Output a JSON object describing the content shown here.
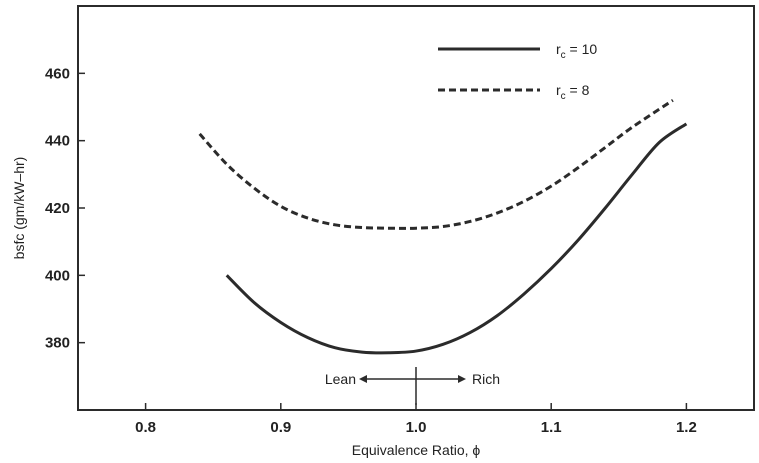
{
  "chart_data": {
    "type": "line",
    "title": "",
    "xlabel": "Equivalence Ratio, ϕ",
    "ylabel": "bsfc (gm/kW–hr)",
    "xlim": [
      0.75,
      1.25
    ],
    "ylim": [
      360,
      480
    ],
    "x_ticks": [
      0.8,
      0.9,
      1.0,
      1.1,
      1.2
    ],
    "x_tick_labels": [
      "0.8",
      "0.9",
      "1.0",
      "1.1",
      "1.2"
    ],
    "y_ticks": [
      380,
      400,
      420,
      440,
      460
    ],
    "y_tick_labels": [
      "380",
      "400",
      "420",
      "440",
      "460"
    ],
    "grid": false,
    "legend_position": "top-right",
    "series": [
      {
        "name_main": "r",
        "name_sub": "c",
        "name_suffix": " = 10",
        "style": "solid",
        "color": "#2b2b2b",
        "x": [
          0.86,
          0.88,
          0.9,
          0.92,
          0.94,
          0.96,
          0.98,
          1.0,
          1.02,
          1.04,
          1.06,
          1.08,
          1.1,
          1.12,
          1.14,
          1.16,
          1.18,
          1.2
        ],
        "y": [
          400,
          392,
          386,
          381.5,
          378.5,
          377.2,
          377,
          377.5,
          379.5,
          383,
          388,
          394.5,
          402,
          410.5,
          420,
          430,
          439.5,
          445
        ]
      },
      {
        "name_main": "r",
        "name_sub": "c",
        "name_suffix": " = 8",
        "style": "dashed",
        "color": "#2b2b2b",
        "x": [
          0.84,
          0.86,
          0.88,
          0.9,
          0.92,
          0.94,
          0.96,
          0.98,
          1.0,
          1.02,
          1.04,
          1.06,
          1.08,
          1.1,
          1.12,
          1.14,
          1.16,
          1.19
        ],
        "y": [
          442,
          433,
          426,
          420.5,
          417,
          415,
          414.2,
          414,
          414,
          414.5,
          416,
          418.5,
          422,
          426.5,
          432,
          438,
          444,
          452
        ]
      }
    ],
    "annotations": {
      "lean": "Lean",
      "rich": "Rich",
      "divider_x": 1.0
    }
  }
}
